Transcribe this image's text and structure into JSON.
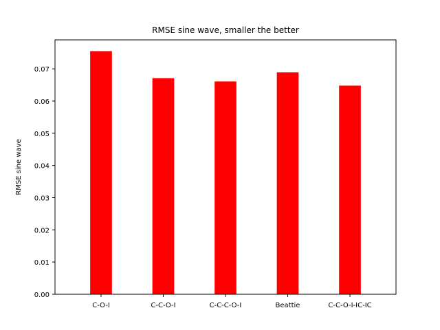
{
  "chart_data": {
    "type": "bar",
    "title": "RMSE sine wave, smaller the better",
    "xlabel": "",
    "ylabel": "RMSE sine wave",
    "categories": [
      "C-O-I",
      "C-C-O-I",
      "C-C-C-O-I",
      "Beattie",
      "C-C-O-I-IC-IC"
    ],
    "values": [
      0.0755,
      0.0671,
      0.0661,
      0.0689,
      0.0648
    ],
    "ylim": [
      0,
      0.079
    ],
    "yticks": [
      0.0,
      0.01,
      0.02,
      0.03,
      0.04,
      0.05,
      0.06,
      0.07
    ],
    "ytick_labels": [
      "0.00",
      "0.01",
      "0.02",
      "0.03",
      "0.04",
      "0.05",
      "0.06",
      "0.07"
    ],
    "bar_color": "#ff0000",
    "grid": false,
    "legend": "none"
  }
}
